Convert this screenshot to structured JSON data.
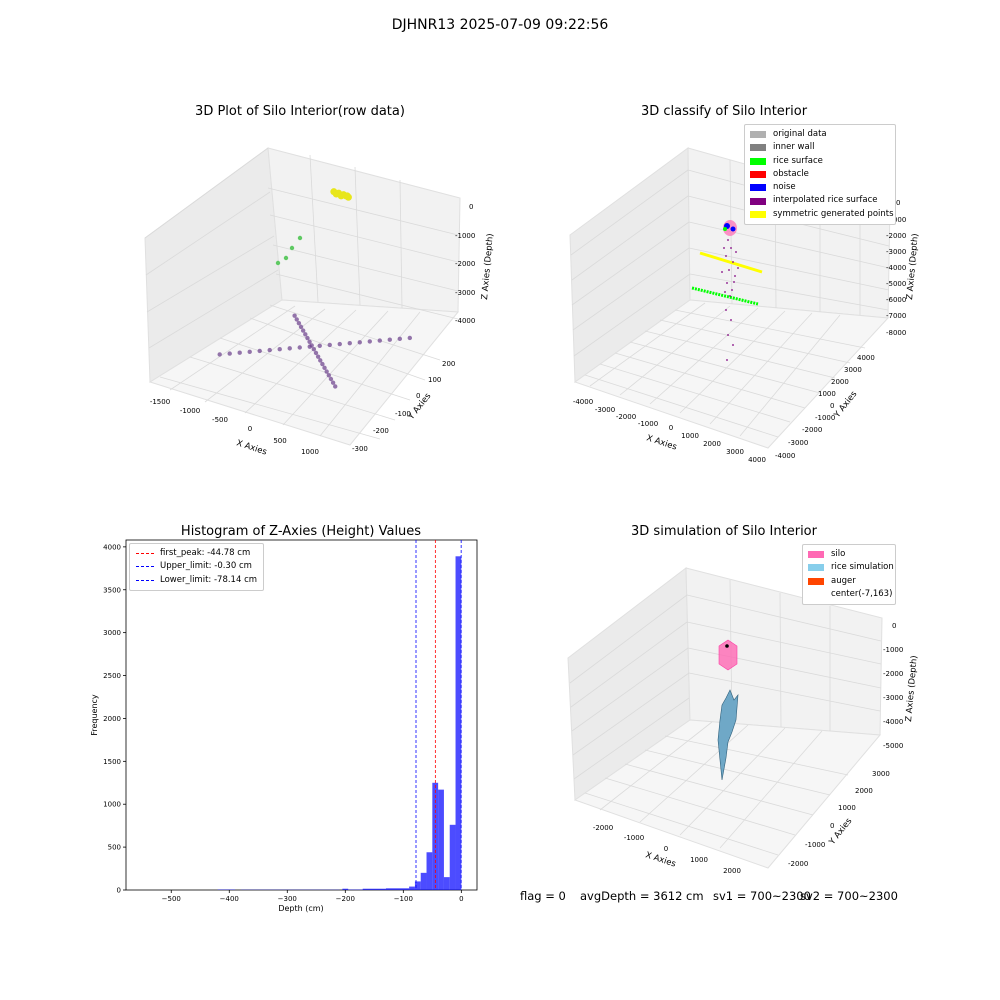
{
  "suptitle": "DJHNR13 2025-07-09 09:22:56",
  "chart_data": [
    {
      "type": "scatter",
      "title": "3D Plot of Silo Interior(row data)",
      "xlabel": "X Axies",
      "ylabel": "Y Axies",
      "zlabel": "Z Axies (Depth)",
      "x_ticks": [
        "-1500",
        "-1000",
        "-500",
        "0",
        "500",
        "1000"
      ],
      "y_ticks": [
        "-300",
        "-200",
        "-100",
        "0",
        "100",
        "200"
      ],
      "z_ticks": [
        "0",
        "-1000",
        "-2000",
        "-3000",
        "-4000"
      ],
      "xlim": [
        -1600,
        1200
      ],
      "ylim": [
        -330,
        280
      ],
      "zlim": [
        -4500,
        300
      ],
      "series": [
        {
          "x": [
            -300,
            -260,
            -220,
            -180,
            -140,
            -100,
            -80,
            -60
          ],
          "y": [
            0,
            0,
            0,
            0,
            0,
            0,
            0,
            0
          ],
          "z": [
            -10,
            -60,
            -20,
            -80,
            -30,
            -50,
            -40,
            -70
          ]
        },
        {
          "x": [
            -1200,
            -1100,
            -1000,
            -900,
            -800,
            -700,
            -600,
            -500,
            -400,
            -300,
            -200,
            -100,
            0,
            100,
            200,
            300,
            400,
            500,
            600,
            700
          ],
          "y": [
            -150,
            -130,
            -110,
            -90,
            -70,
            -50,
            -30,
            -10,
            10,
            30,
            50,
            70,
            90,
            110,
            130,
            150,
            170,
            190,
            210,
            230
          ],
          "z": [
            -4200,
            -4200,
            -4200,
            -4200,
            -4200,
            -4200,
            -4200,
            -4200,
            -4200,
            -4200,
            -4200,
            -4200,
            -4200,
            -4200,
            -4200,
            -4200,
            -4200,
            -4200,
            -4200,
            -4200
          ]
        },
        {
          "x": [
            -1100,
            -1000,
            -900,
            -800,
            -700,
            -600,
            -500,
            -400,
            -300,
            -200,
            -100,
            0,
            100,
            200,
            300,
            400,
            500,
            600,
            700,
            800
          ],
          "y": [
            200,
            180,
            160,
            140,
            120,
            100,
            80,
            60,
            40,
            20,
            0,
            -20,
            -40,
            -60,
            -80,
            -100,
            -120,
            -140,
            -160,
            -180
          ],
          "z": [
            -4200,
            -4200,
            -4200,
            -4200,
            -4200,
            -4200,
            -4200,
            -4200,
            -4200,
            -4200,
            -4200,
            -4200,
            -4200,
            -4200,
            -4200,
            -4200,
            -4200,
            -4200,
            -4200,
            -4200
          ]
        }
      ]
    },
    {
      "type": "scatter",
      "title": "3D classify of Silo Interior",
      "xlabel": "X Axies",
      "ylabel": "Y Axies",
      "zlabel": "Z Axies (Depth)",
      "x_ticks": [
        "-4000",
        "-3000",
        "-2000",
        "-1000",
        "0",
        "1000",
        "2000",
        "3000",
        "4000"
      ],
      "y_ticks": [
        "-4000",
        "-3000",
        "-2000",
        "-1000",
        "0",
        "1000",
        "2000",
        "3000",
        "4000"
      ],
      "z_ticks": [
        "0",
        "-1000",
        "-2000",
        "-3000",
        "-4000",
        "-5000",
        "-6000",
        "-7000",
        "-8000"
      ],
      "legend": [
        {
          "label": "original data",
          "color": "#b0b0b0"
        },
        {
          "label": "inner wall",
          "color": "#808080"
        },
        {
          "label": "rice surface",
          "color": "#00ff00"
        },
        {
          "label": "obstacle",
          "color": "#ff0000"
        },
        {
          "label": "noise",
          "color": "#0000ff"
        },
        {
          "label": "interpolated rice surface",
          "color": "#800080"
        },
        {
          "label": "symmetric generated points",
          "color": "#ffff00"
        }
      ]
    },
    {
      "type": "bar",
      "title": "Histogram of Z-Axies (Height) Values",
      "xlabel": "Depth (cm)",
      "ylabel": "Frequency",
      "xlim": [
        -578,
        27
      ],
      "ylim": [
        0,
        4080
      ],
      "x_ticks": [
        -500,
        -400,
        -300,
        -200,
        -100,
        0
      ],
      "y_ticks": [
        0,
        500,
        1000,
        1500,
        2000,
        2500,
        3000,
        3500,
        4000
      ],
      "bar_color": "#0000ff",
      "bins": [
        {
          "x0": -420,
          "x1": -390,
          "count": 5
        },
        {
          "x0": -380,
          "x1": -290,
          "count": 3
        },
        {
          "x0": -290,
          "x1": -210,
          "count": 3
        },
        {
          "x0": -205,
          "x1": -195,
          "count": 15
        },
        {
          "x0": -195,
          "x1": -170,
          "count": 5
        },
        {
          "x0": -170,
          "x1": -130,
          "count": 15
        },
        {
          "x0": -130,
          "x1": -90,
          "count": 20
        },
        {
          "x0": -90,
          "x1": -80,
          "count": 40
        },
        {
          "x0": -80,
          "x1": -70,
          "count": 100
        },
        {
          "x0": -70,
          "x1": -60,
          "count": 200
        },
        {
          "x0": -60,
          "x1": -50,
          "count": 440
        },
        {
          "x0": -50,
          "x1": -40,
          "count": 1250
        },
        {
          "x0": -40,
          "x1": -30,
          "count": 1170
        },
        {
          "x0": -30,
          "x1": -20,
          "count": 150
        },
        {
          "x0": -20,
          "x1": -10,
          "count": 760
        },
        {
          "x0": -10,
          "x1": 0,
          "count": 3890
        }
      ],
      "vlines": [
        {
          "label": "first_peak: -44.78 cm",
          "x": -44.78,
          "color": "#ff0000"
        },
        {
          "label": "Upper_limit: -0.30 cm",
          "x": -0.3,
          "color": "#0000ff"
        },
        {
          "label": "Lower_limit: -78.14 cm",
          "x": -78.14,
          "color": "#0000ff"
        }
      ]
    },
    {
      "type": "surface",
      "title": "3D simulation of Silo Interior",
      "xlabel": "X Axies",
      "ylabel": "Y Axies",
      "zlabel": "Z Axies (Depth)",
      "x_ticks": [
        "-2000",
        "-1000",
        "0",
        "1000",
        "2000"
      ],
      "y_ticks": [
        "-2000",
        "-1000",
        "0",
        "1000",
        "2000",
        "3000"
      ],
      "z_ticks": [
        "0",
        "-1000",
        "-2000",
        "-3000",
        "-4000",
        "-5000"
      ],
      "legend": [
        {
          "label": "silo",
          "color": "#ff69b4"
        },
        {
          "label": "rice simulation",
          "color": "#87ceeb"
        },
        {
          "label": "auger",
          "color": "#ff4500"
        },
        {
          "label": "center(-7,163)",
          "color": ""
        }
      ]
    }
  ],
  "status": {
    "flag": "flag = 0",
    "avg": "avgDepth = 3612 cm",
    "sv1": "sv1 = 700~2300",
    "sv2": "sv2 = 700~2300"
  }
}
